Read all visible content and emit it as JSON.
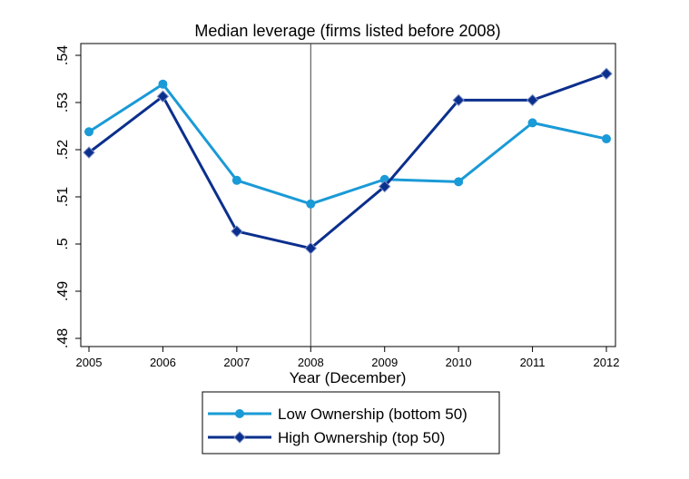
{
  "chart_data": {
    "type": "line",
    "title": "Median leverage (firms listed before 2008)",
    "xlabel": "Year (December)",
    "ylabel": "",
    "x": [
      2005,
      2006,
      2007,
      2008,
      2009,
      2010,
      2011,
      2012
    ],
    "x_tick_labels": [
      "2005",
      "2006",
      "2007",
      "2008",
      "2009",
      "2010",
      "2011",
      "2012"
    ],
    "xlim": [
      2005,
      2012
    ],
    "ylim": [
      0.48,
      0.54
    ],
    "y_ticks": [
      0.48,
      0.49,
      0.5,
      0.51,
      0.52,
      0.53,
      0.54
    ],
    "y_tick_labels": [
      ".48",
      ".49",
      ".5",
      ".51",
      ".52",
      ".53",
      ".54"
    ],
    "reference_line_x": 2008,
    "grid": false,
    "legend_position": "bottom",
    "series": [
      {
        "name": "Low Ownership (bottom 50)",
        "marker": "circle",
        "color": "#1a9ad6",
        "values": [
          0.5238,
          0.5339,
          0.5135,
          0.5085,
          0.5137,
          0.5132,
          0.5257,
          0.5223
        ]
      },
      {
        "name": "High Ownership (top 50)",
        "marker": "diamond",
        "color": "#0b2f8c",
        "values": [
          0.5194,
          0.5313,
          0.5027,
          0.4991,
          0.5122,
          0.5305,
          0.5305,
          0.5361
        ]
      }
    ]
  }
}
